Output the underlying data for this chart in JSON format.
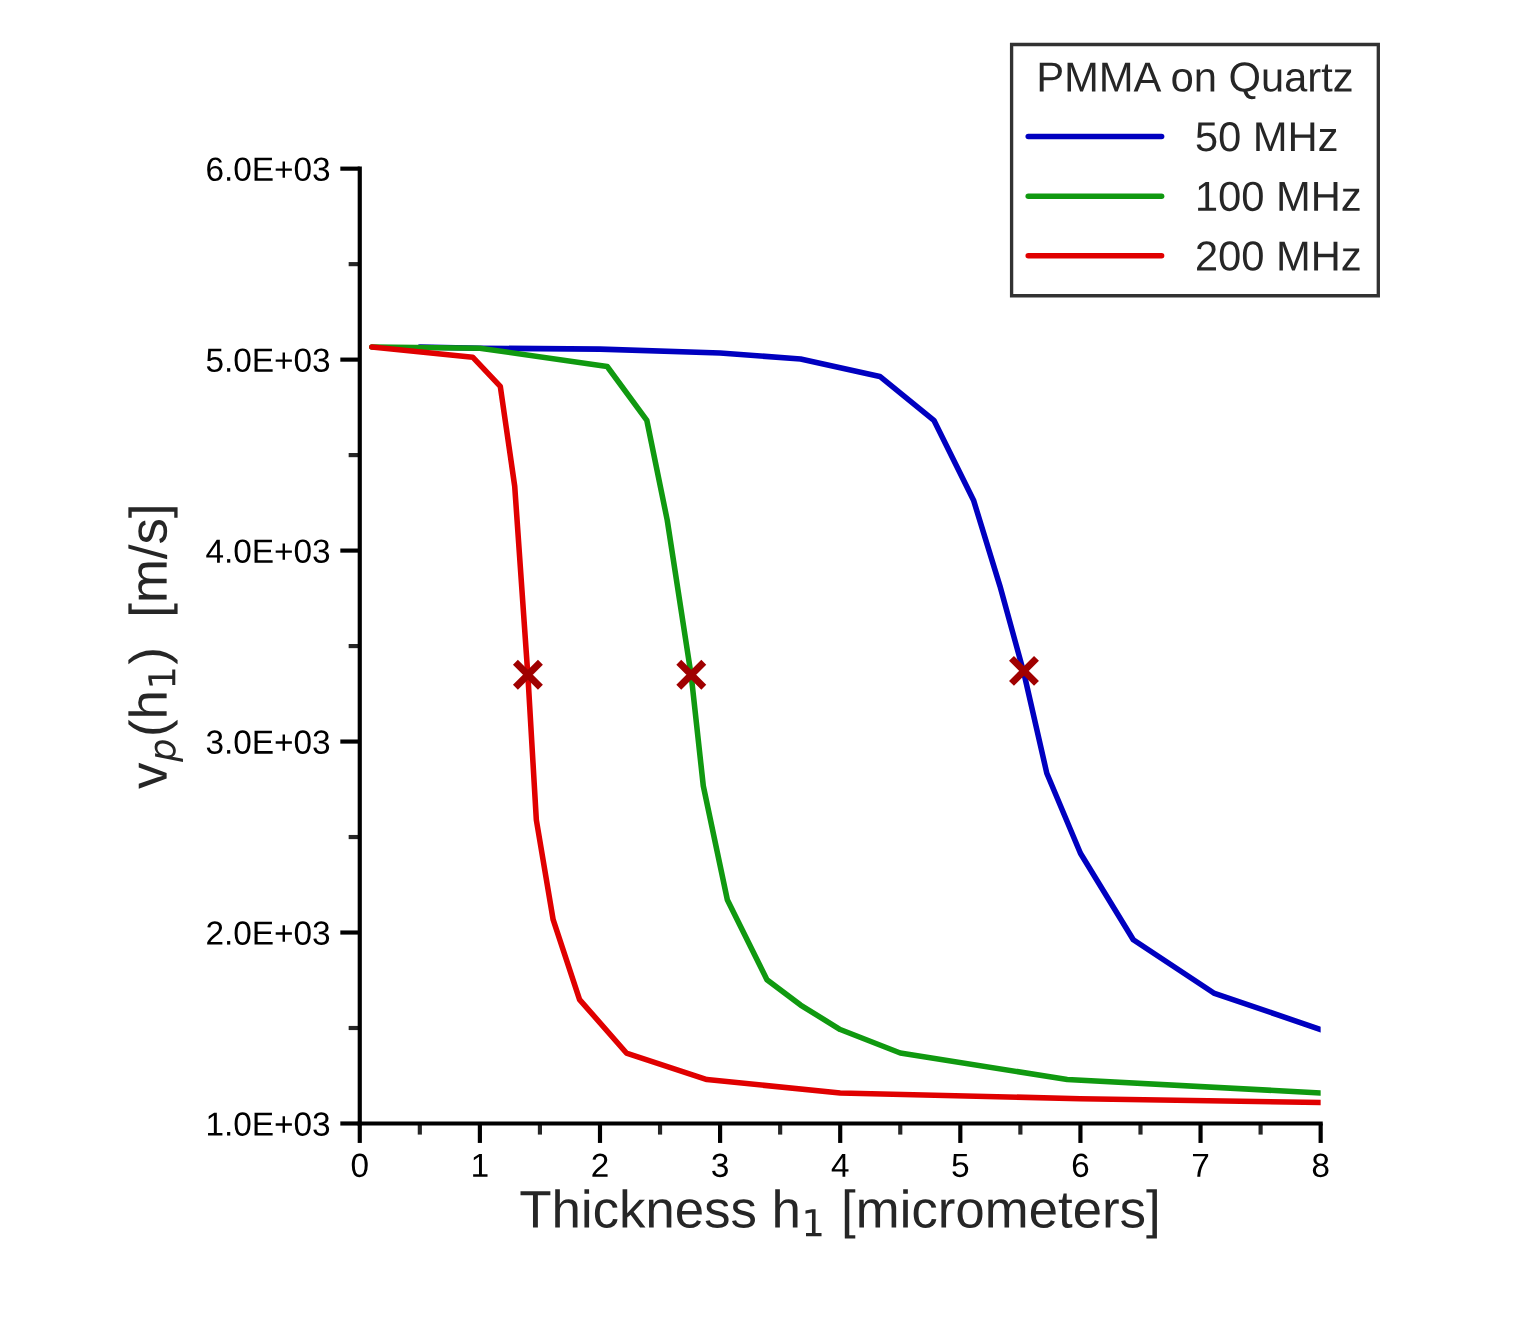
{
  "chart_data": {
    "type": "line",
    "xlabel": "Thickness h$_{1}$ [micrometers]",
    "ylabel": "v$_{p}$(h$_{1}$)  [m/s]",
    "legend_title": "PMMA on Quartz",
    "legend": "top right",
    "grid": false,
    "line_style": "solid",
    "xlim": [
      0,
      8
    ],
    "ylim": [
      1000,
      6000
    ],
    "xticks": [
      0,
      {
        "value": 0.5,
        "label": null
      },
      1,
      {
        "value": 1.5,
        "label": null
      },
      2,
      {
        "value": 2.5,
        "label": null
      },
      3,
      {
        "value": 3.5,
        "label": null
      },
      4,
      {
        "value": 4.5,
        "label": null
      },
      5,
      {
        "value": 5.5,
        "label": null
      },
      6,
      {
        "value": 6.5,
        "label": null
      },
      7,
      {
        "value": 7.5,
        "label": null
      },
      8
    ],
    "yticks": [
      {
        "value": 1000,
        "label": "1.0E+03"
      },
      {
        "value": 1500,
        "label": null
      },
      {
        "value": 2000,
        "label": "2.0E+03"
      },
      {
        "value": 2500,
        "label": null
      },
      {
        "value": 3000,
        "label": "3.0E+03"
      },
      {
        "value": 3500,
        "label": null
      },
      {
        "value": 4000,
        "label": "4.0E+03"
      },
      {
        "value": 4500,
        "label": null
      },
      {
        "value": 5000,
        "label": "5.0E+03"
      },
      {
        "value": 5500,
        "label": null
      },
      {
        "value": 6000,
        "label": "6.0E+03"
      }
    ],
    "series": [
      {
        "name": "50 MHz",
        "color": "#0000c0",
        "x": [
          0.5,
          1,
          2,
          3,
          3.67,
          4.33,
          4.78,
          5.11,
          5.33,
          5.53,
          5.72,
          6.0,
          6.44,
          7.11,
          8
        ],
        "values": [
          5066,
          5060,
          5055,
          5035,
          5003,
          4912,
          4682,
          4264,
          3814,
          3357,
          2834,
          2415,
          1962,
          1683,
          1492
        ]
      },
      {
        "name": "100 MHz",
        "color": "#109910",
        "x": [
          0.1,
          1,
          2.06,
          2.39,
          2.56,
          2.76,
          2.86,
          3.06,
          3.39,
          3.67,
          4,
          4.5,
          5.89,
          8
        ],
        "values": [
          5066,
          5060,
          4964,
          4682,
          4159,
          3343,
          2768,
          2172,
          1753,
          1620,
          1492,
          1369,
          1230,
          1160
        ]
      },
      {
        "name": "200 MHz",
        "color": "#e00000",
        "x": [
          0.1,
          0.94,
          1.17,
          1.29,
          1.4,
          1.47,
          1.61,
          1.83,
          2.22,
          2.89,
          4,
          6,
          8
        ],
        "values": [
          5066,
          5013,
          4860,
          4337,
          3343,
          2590,
          2067,
          1649,
          1369,
          1230,
          1160,
          1130,
          1110
        ]
      },
      {
        "type": "scatter",
        "marker": "cross",
        "color": "#a00000",
        "x": [
          1.4,
          2.76,
          5.53
        ],
        "values": [
          3350,
          3350,
          3370
        ]
      }
    ]
  }
}
